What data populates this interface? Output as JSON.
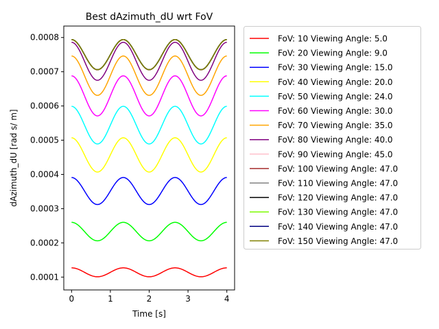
{
  "chart_data": {
    "type": "line",
    "title": "Best dAzimuth_dU wrt FoV",
    "xlabel": "Time [s]",
    "ylabel": "dAzimuth_dU [rad s/ m]",
    "xlim": [
      -0.2,
      4.2
    ],
    "ylim": [
      6.25e-05,
      0.0008335
    ],
    "xticks": [
      0,
      1,
      2,
      3,
      4
    ],
    "xtick_labels": [
      "0",
      "1",
      "2",
      "3",
      "4"
    ],
    "yticks": [
      0.0001,
      0.0002,
      0.0003,
      0.0004,
      0.0005,
      0.0006,
      0.0007,
      0.0008
    ],
    "ytick_labels": [
      "0.0001",
      "0.0002",
      "0.0003",
      "0.0004",
      "0.0005",
      "0.0006",
      "0.0007",
      "0.0008"
    ],
    "grid": false,
    "legend_position": "outside-right",
    "period_s": 1.3333,
    "series": [
      {
        "name": "FoV: 10 Viewing Angle: 5.0",
        "color": "#ff0000",
        "max": 0.000127,
        "min": 0.000101
      },
      {
        "name": "FoV: 20 Viewing Angle: 9.0",
        "color": "#00ff00",
        "max": 0.00026,
        "min": 0.000206
      },
      {
        "name": "FoV: 30 Viewing Angle: 15.0",
        "color": "#0000ff",
        "max": 0.000391,
        "min": 0.000312
      },
      {
        "name": "FoV: 40 Viewing Angle: 20.0",
        "color": "#ffff00",
        "max": 0.000507,
        "min": 0.000407
      },
      {
        "name": "FoV: 50 Viewing Angle: 24.0",
        "color": "#00ffff",
        "max": 0.000599,
        "min": 0.000489
      },
      {
        "name": "FoV: 60 Viewing Angle: 30.0",
        "color": "#ff00ff",
        "max": 0.000688,
        "min": 0.000571
      },
      {
        "name": "FoV: 70 Viewing Angle: 35.0",
        "color": "#ffa500",
        "max": 0.000746,
        "min": 0.000631
      },
      {
        "name": "FoV: 80 Viewing Angle: 40.0",
        "color": "#800080",
        "max": 0.000786,
        "min": 0.000675
      },
      {
        "name": "FoV: 90 Viewing Angle: 45.0",
        "color": "#ffc0cb",
        "max": 0.000793,
        "min": 0.000705
      },
      {
        "name": "FoV: 100 Viewing Angle: 47.0",
        "color": "#a52a2a",
        "max": 0.000794,
        "min": 0.000706
      },
      {
        "name": "FoV: 110 Viewing Angle: 47.0",
        "color": "#808080",
        "max": 0.000794,
        "min": 0.000706
      },
      {
        "name": "FoV: 120 Viewing Angle: 47.0",
        "color": "#000000",
        "max": 0.000794,
        "min": 0.000706
      },
      {
        "name": "FoV: 130 Viewing Angle: 47.0",
        "color": "#7cfc00",
        "max": 0.000794,
        "min": 0.000706
      },
      {
        "name": "FoV: 140 Viewing Angle: 47.0",
        "color": "#000080",
        "max": 0.000794,
        "min": 0.000706
      },
      {
        "name": "FoV: 150 Viewing Angle: 47.0",
        "color": "#808000",
        "max": 0.000794,
        "min": 0.000706
      }
    ]
  }
}
